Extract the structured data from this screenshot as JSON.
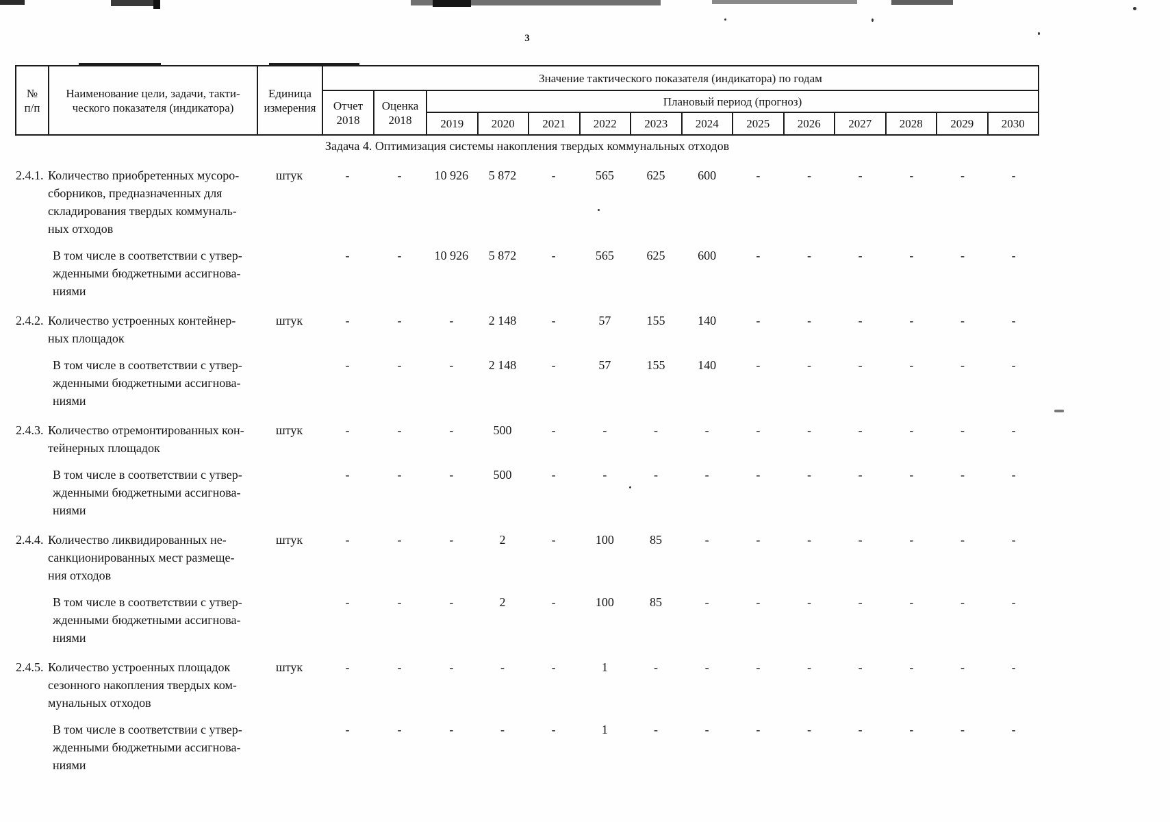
{
  "page": {
    "number": "3",
    "ink_color": "#151515",
    "paper_color": "#fefefe"
  },
  "table": {
    "header": {
      "col_num": "№\nп/п",
      "col_name": "Наименование цели, задачи, такти-\nческого показателя (индикатора)",
      "col_unit": "Единица\nизмерения",
      "values_title": "Значение тактического показателя (индикатора) по годам",
      "report": "Отчет\n2018",
      "estimate": "Оценка\n2018",
      "plan_period": "Плановый период (прогноз)",
      "years": [
        "2019",
        "2020",
        "2021",
        "2022",
        "2023",
        "2024",
        "2025",
        "2026",
        "2027",
        "2028",
        "2029",
        "2030"
      ]
    },
    "section_title": "Задача 4. Оптимизация системы накопления твердых коммунальных отходов",
    "rows": [
      {
        "kind": "main",
        "num": "2.4.1.",
        "name": "Количество приобретенных мусоро-\nсборников, предназначенных для\nскладирования твердых коммуналь-\nных отходов",
        "unit": "штук",
        "values": [
          "-",
          "-",
          "10 926",
          "5 872",
          "-",
          "565",
          "625",
          "600",
          "-",
          "-",
          "-",
          "-",
          "-",
          "-"
        ]
      },
      {
        "kind": "sub",
        "num": "",
        "name": "В том числе в соответствии с утвер-\nжденными бюджетными ассигнова-\nниями",
        "unit": "",
        "values": [
          "-",
          "-",
          "10 926",
          "5 872",
          "-",
          "565",
          "625",
          "600",
          "-",
          "-",
          "-",
          "-",
          "-",
          "-"
        ]
      },
      {
        "kind": "main",
        "num": "2.4.2.",
        "name": "Количество устроенных контейнер-\nных площадок",
        "unit": "штук",
        "values": [
          "-",
          "-",
          "-",
          "2 148",
          "-",
          "57",
          "155",
          "140",
          "-",
          "-",
          "-",
          "-",
          "-",
          "-"
        ]
      },
      {
        "kind": "sub",
        "num": "",
        "name": "В том числе в соответствии с утвер-\nжденными бюджетными ассигнова-\nниями",
        "unit": "",
        "values": [
          "-",
          "-",
          "-",
          "2 148",
          "-",
          "57",
          "155",
          "140",
          "-",
          "-",
          "-",
          "-",
          "-",
          "-"
        ]
      },
      {
        "kind": "main",
        "num": "2.4.3.",
        "name": "Количество отремонтированных кон-\nтейнерных площадок",
        "unit": "штук",
        "values": [
          "-",
          "-",
          "-",
          "500",
          "-",
          "-",
          "-",
          "-",
          "-",
          "-",
          "-",
          "-",
          "-",
          "-"
        ]
      },
      {
        "kind": "sub",
        "num": "",
        "name": "В том числе в соответствии с утвер-\nжденными бюджетными ассигнова-\nниями",
        "unit": "",
        "values": [
          "-",
          "-",
          "-",
          "500",
          "-",
          "-",
          "-",
          "-",
          "-",
          "-",
          "-",
          "-",
          "-",
          "-"
        ]
      },
      {
        "kind": "main",
        "num": "2.4.4.",
        "name": "Количество ликвидированных не-\nсанкционированных мест размеще-\nния отходов",
        "unit": "штук",
        "values": [
          "-",
          "-",
          "-",
          "2",
          "-",
          "100",
          "85",
          "-",
          "-",
          "-",
          "-",
          "-",
          "-",
          "-"
        ]
      },
      {
        "kind": "sub",
        "num": "",
        "name": "В том числе в соответствии с утвер-\nжденными бюджетными ассигнова-\nниями",
        "unit": "",
        "values": [
          "-",
          "-",
          "-",
          "2",
          "-",
          "100",
          "85",
          "-",
          "-",
          "-",
          "-",
          "-",
          "-",
          "-"
        ]
      },
      {
        "kind": "main",
        "num": "2.4.5.",
        "name": "Количество устроенных площадок\nсезонного накопления твердых ком-\nмунальных отходов",
        "unit": "штук",
        "values": [
          "-",
          "-",
          "-",
          "-",
          "-",
          "1",
          "-",
          "-",
          "-",
          "-",
          "-",
          "-",
          "-",
          "-"
        ]
      },
      {
        "kind": "sub",
        "num": "",
        "name": "В том числе в соответствии с утвер-\nжденными бюджетными ассигнова-\nниями",
        "unit": "",
        "values": [
          "-",
          "-",
          "-",
          "-",
          "-",
          "1",
          "-",
          "-",
          "-",
          "-",
          "-",
          "-",
          "-",
          "-"
        ]
      }
    ]
  }
}
